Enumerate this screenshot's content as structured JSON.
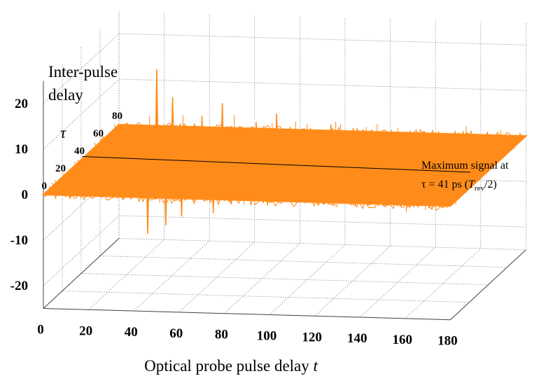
{
  "chart_data": {
    "type": "surface-3d",
    "xlabel": {
      "text": "Optical probe pulse delay ",
      "var": "t"
    },
    "ylabel": {
      "line1": "Inter-pulse",
      "line2": "delay",
      "symbol": "τ"
    },
    "x_ticks": [
      "0",
      "20",
      "40",
      "60",
      "80",
      "100",
      "120",
      "140",
      "160",
      "180"
    ],
    "y_ticks": [
      "0",
      "20",
      "40",
      "60",
      "80"
    ],
    "z_ticks": [
      "20",
      "10",
      "0",
      "-10",
      "-20"
    ],
    "xlim": [
      0,
      180
    ],
    "ylim": [
      0,
      80
    ],
    "zlim": [
      -25,
      25
    ],
    "grid": true,
    "surface_color": "#ff8c1a",
    "annotation": {
      "line1": "Maximum signal at",
      "line2_prefix": "τ = 41 ps (",
      "line2_var": "T",
      "line2_sub": "rev",
      "line2_suffix": "/2)",
      "tau": 41
    },
    "peaks": [
      {
        "t": 18,
        "z": 6
      },
      {
        "t": 29,
        "z": -16
      },
      {
        "t": 33,
        "z": 20
      },
      {
        "t": 37,
        "z": -14
      },
      {
        "t": 40,
        "z": 14
      },
      {
        "t": 44,
        "z": -12
      },
      {
        "t": 53,
        "z": 10
      },
      {
        "t": 58,
        "z": -11
      },
      {
        "t": 62,
        "z": 13
      },
      {
        "t": 66,
        "z": -9
      },
      {
        "t": 77,
        "z": 9
      },
      {
        "t": 82,
        "z": -9
      },
      {
        "t": 86,
        "z": 11
      },
      {
        "t": 90,
        "z": -8
      },
      {
        "t": 101,
        "z": 8
      },
      {
        "t": 106,
        "z": -7
      },
      {
        "t": 110,
        "z": 9
      },
      {
        "t": 114,
        "z": -7
      },
      {
        "t": 125,
        "z": 6
      },
      {
        "t": 130,
        "z": -6
      },
      {
        "t": 134,
        "z": 7
      },
      {
        "t": 139,
        "z": -6
      },
      {
        "t": 149,
        "z": 5
      },
      {
        "t": 154,
        "z": -5
      },
      {
        "t": 158,
        "z": 6
      },
      {
        "t": 163,
        "z": -5
      },
      {
        "t": 173,
        "z": 4
      },
      {
        "t": 178,
        "z": 5
      }
    ]
  }
}
